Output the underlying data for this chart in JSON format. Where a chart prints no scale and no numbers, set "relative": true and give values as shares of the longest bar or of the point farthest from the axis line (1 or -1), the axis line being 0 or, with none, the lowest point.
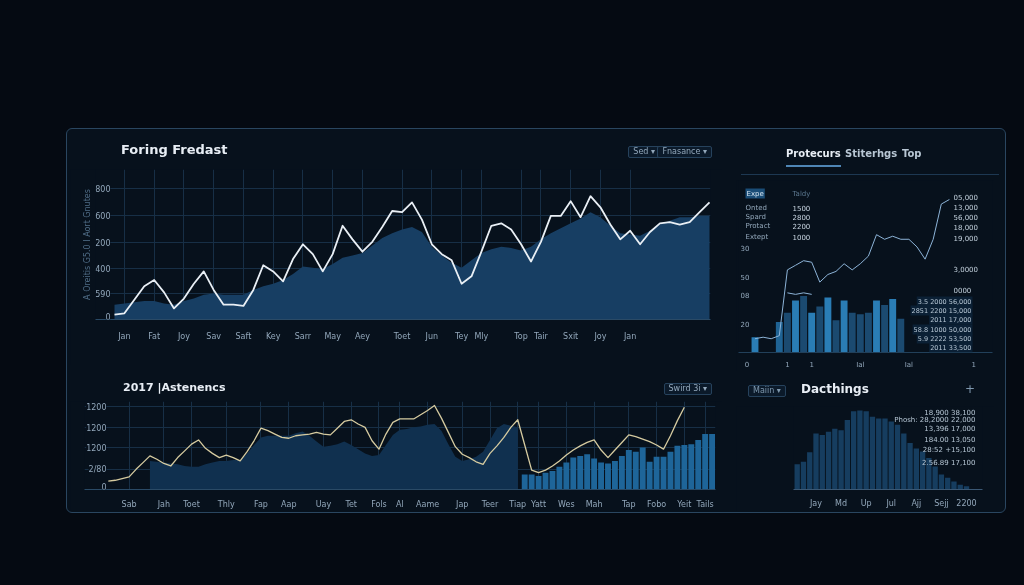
{
  "chart_data": [
    {
      "type": "area",
      "relative": true,
      "title": "Foring Fredast",
      "ylabel": "A Oreitis G5.0 I Aort Gnutes",
      "annotations": [
        "Sed ▾",
        "Fnasance ▾",
        "0",
        "590",
        "400",
        "200",
        "600",
        "800"
      ],
      "categories": [
        null,
        "Jan",
        null,
        null,
        "Fat",
        null,
        null,
        "Joy",
        null,
        null,
        "Sav",
        null,
        null,
        "Saft",
        null,
        null,
        "Key",
        null,
        null,
        "Sarr",
        null,
        null,
        "May",
        null,
        null,
        "Aey",
        null,
        null,
        null,
        "Toet",
        null,
        null,
        "Jun",
        null,
        null,
        "Tey",
        null,
        "Mly",
        null,
        null,
        null,
        "Top",
        null,
        "Tair",
        null,
        null,
        "Sxit",
        null,
        null,
        "Joy",
        null,
        null,
        "Jan",
        null,
        null,
        null,
        null,
        null,
        null,
        null,
        null
      ],
      "grid": true,
      "series": [
        {
          "color": "#173e63",
          "values": [
            0.12,
            0.13,
            0.14,
            0.15,
            0.15,
            0.13,
            0.12,
            0.15,
            0.17,
            0.2,
            0.21,
            0.2,
            0.2,
            0.2,
            0.24,
            0.27,
            0.29,
            0.32,
            0.37,
            0.43,
            0.42,
            0.41,
            0.45,
            0.5,
            0.52,
            0.54,
            0.6,
            0.66,
            0.7,
            0.73,
            0.75,
            0.71,
            0.59,
            0.52,
            0.46,
            0.42,
            0.48,
            0.54,
            0.57,
            0.59,
            0.58,
            0.56,
            0.59,
            0.65,
            0.7,
            0.74,
            0.78,
            0.82,
            0.87,
            0.83,
            0.76,
            0.7,
            0.69,
            0.68,
            0.72,
            0.77,
            0.8,
            0.83,
            0.83,
            0.84,
            0.84
          ]
        },
        {
          "type": "line",
          "color": "#e9eff5",
          "values": [
            0.04,
            0.05,
            0.16,
            0.27,
            0.32,
            0.22,
            0.09,
            0.17,
            0.29,
            0.39,
            0.24,
            0.12,
            0.12,
            0.11,
            0.24,
            0.44,
            0.39,
            0.31,
            0.49,
            0.61,
            0.53,
            0.39,
            0.53,
            0.76,
            0.65,
            0.55,
            0.63,
            0.75,
            0.88,
            0.87,
            0.95,
            0.81,
            0.61,
            0.53,
            0.48,
            0.29,
            0.35,
            0.55,
            0.76,
            0.78,
            0.73,
            0.61,
            0.47,
            0.63,
            0.84,
            0.84,
            0.96,
            0.83,
            1.0,
            0.91,
            0.77,
            0.65,
            0.72,
            0.61,
            0.71,
            0.78,
            0.79,
            0.77,
            0.79,
            0.87,
            0.95
          ]
        }
      ]
    },
    {
      "type": "line",
      "relative": true,
      "annotations": [
        "Protecurs",
        "Stiterhgs",
        "Top",
        "Expe",
        "Taldy",
        "Onted",
        "1500",
        "Spard",
        "2800",
        "Protact",
        "2200",
        "Extept",
        "1000",
        "05,000",
        "13,000",
        "56,000",
        "18,000",
        "19,000",
        "3,0000",
        "0000",
        "3.5 2000 56,000",
        "2851 2200 15,000",
        "2011 17,000",
        "58.8 1000 50,000",
        "5.9 2222 53,500",
        "2011 33,500",
        "30",
        "50",
        "08",
        "20"
      ],
      "categories": [
        "0",
        null,
        null,
        null,
        null,
        "1",
        null,
        null,
        "1",
        null,
        null,
        null,
        null,
        null,
        "Ial",
        null,
        null,
        null,
        null,
        null,
        "Ial",
        null,
        null,
        null,
        null,
        null,
        null,
        null,
        "1"
      ],
      "series": [
        {
          "type": "bar",
          "colors": [
            null,
            "#2a7db5",
            null,
            null,
            "#1f6394",
            "#1b4a70",
            "#2a7db5",
            "#1b4a70",
            "#2a7db5",
            "#1b4a70",
            "#2a7db5",
            "#1b4a70",
            "#2a7db5",
            "#1b4a70",
            "#1b4a70",
            "#1b4a70",
            "#2a7db5",
            "#1b4a70",
            "#2a7db5",
            "#1b4a70",
            null,
            null,
            null,
            null,
            null,
            null,
            null,
            null,
            null
          ],
          "values": [
            null,
            0.1,
            null,
            null,
            0.2,
            0.26,
            0.34,
            0.37,
            0.26,
            0.3,
            0.36,
            0.21,
            0.34,
            0.26,
            0.25,
            0.26,
            0.34,
            0.31,
            0.35,
            0.22,
            null,
            null,
            null,
            null,
            null,
            null,
            null,
            null,
            null
          ]
        },
        {
          "color": "#8db4d8",
          "values": [
            null,
            0.09,
            0.1,
            0.09,
            0.11,
            0.54,
            0.57,
            0.6,
            0.59,
            0.46,
            0.51,
            0.53,
            0.58,
            0.54,
            0.58,
            0.63,
            0.77,
            0.74,
            0.76,
            0.74,
            0.74,
            0.69,
            0.61,
            0.74,
            0.97,
            1.0,
            null,
            null,
            null
          ]
        },
        {
          "color": "#8db4d8",
          "values": [
            null,
            null,
            null,
            null,
            null,
            0.39,
            0.38,
            0.39,
            0.38,
            null,
            null,
            null,
            null,
            null,
            null,
            null,
            null,
            null,
            null,
            null,
            null,
            null,
            null,
            null,
            null,
            null,
            null,
            null,
            null
          ]
        }
      ]
    },
    {
      "type": "line",
      "relative": true,
      "title": "2017 |Astenencs",
      "annotations": [
        "Swird 3i ▾",
        "0",
        "2/80",
        "1200",
        "1200",
        "1200"
      ],
      "categories": [
        null,
        null,
        null,
        "Sab",
        null,
        null,
        null,
        null,
        "Jah",
        null,
        null,
        null,
        "Toet",
        null,
        null,
        null,
        null,
        "Thly",
        null,
        null,
        null,
        null,
        "Fap",
        null,
        null,
        null,
        "Aap",
        null,
        null,
        null,
        null,
        "Uay",
        null,
        null,
        null,
        "Tet",
        null,
        null,
        null,
        "Fols",
        null,
        null,
        "Al",
        null,
        null,
        null,
        "Aame",
        null,
        null,
        null,
        null,
        "Jap",
        null,
        null,
        null,
        "Teer",
        null,
        null,
        null,
        "Tiap",
        null,
        null,
        "Yatt",
        null,
        null,
        null,
        "Wes",
        null,
        null,
        null,
        "Mah",
        null,
        null,
        null,
        null,
        "Tap",
        null,
        null,
        null,
        "Fobo",
        null,
        null,
        null,
        "Yeit",
        null,
        null,
        "Tails",
        null
      ],
      "grid": true,
      "series": [
        {
          "color": "#d6cba0",
          "values": [
            0.1,
            0.11,
            0.13,
            0.15,
            0.24,
            0.32,
            0.4,
            0.36,
            0.31,
            0.28,
            0.38,
            0.46,
            0.54,
            0.59,
            0.49,
            0.43,
            0.38,
            0.41,
            0.38,
            0.34,
            0.45,
            0.58,
            0.73,
            0.7,
            0.66,
            0.62,
            0.61,
            0.64,
            0.65,
            0.66,
            0.68,
            0.66,
            0.65,
            0.73,
            0.81,
            0.83,
            0.78,
            0.74,
            0.58,
            0.48,
            0.66,
            0.8,
            0.84,
            0.84,
            0.84,
            0.89,
            0.94,
            1.0,
            0.85,
            0.68,
            0.51,
            0.42,
            0.38,
            0.33,
            0.3,
            0.43,
            0.52,
            0.62,
            0.74,
            0.83,
            0.53,
            0.23,
            0.2,
            0.23,
            0.28,
            0.34,
            0.41,
            0.47,
            0.52,
            0.56,
            0.59,
            0.47,
            0.38,
            0.47,
            0.56,
            0.65,
            0.63,
            0.6,
            0.57,
            0.53,
            0.48,
            0.64,
            0.82,
            0.98,
            null,
            null,
            null,
            null
          ]
        },
        {
          "type": "area",
          "color": "#10304f",
          "values": [
            null,
            null,
            null,
            null,
            null,
            null,
            0.34,
            0.33,
            0.32,
            0.31,
            0.3,
            0.28,
            0.27,
            0.27,
            0.3,
            0.32,
            0.34,
            0.34,
            0.35,
            0.35,
            0.43,
            0.53,
            0.62,
            0.64,
            0.64,
            0.64,
            0.64,
            0.67,
            0.69,
            0.64,
            0.57,
            0.51,
            0.52,
            0.54,
            0.57,
            0.53,
            0.48,
            0.43,
            0.4,
            0.41,
            0.53,
            0.65,
            0.71,
            0.72,
            0.74,
            0.75,
            0.77,
            0.78,
            0.7,
            0.54,
            0.39,
            0.34,
            0.36,
            0.39,
            0.45,
            0.59,
            0.73,
            0.78,
            0.76,
            0.74,
            null,
            null,
            null,
            null,
            null,
            null,
            null,
            null,
            null,
            null,
            null,
            null,
            null,
            null,
            null,
            null,
            null,
            null,
            null,
            null,
            null,
            null,
            null,
            null,
            null,
            null,
            null,
            null
          ]
        },
        {
          "type": "bar",
          "color": "#1e6599",
          "values": [
            null,
            null,
            null,
            null,
            null,
            null,
            null,
            null,
            null,
            null,
            null,
            null,
            null,
            null,
            null,
            null,
            null,
            null,
            null,
            null,
            null,
            null,
            null,
            null,
            null,
            null,
            null,
            null,
            null,
            null,
            null,
            null,
            null,
            null,
            null,
            null,
            null,
            null,
            null,
            null,
            null,
            null,
            null,
            null,
            null,
            null,
            null,
            null,
            null,
            null,
            null,
            null,
            null,
            null,
            null,
            null,
            null,
            null,
            null,
            null,
            0.18,
            0.18,
            0.16,
            0.2,
            0.22,
            0.27,
            0.32,
            0.38,
            0.4,
            0.42,
            0.37,
            0.32,
            0.31,
            0.34,
            0.4,
            0.47,
            0.45,
            0.5,
            0.33,
            0.39,
            0.39,
            0.45,
            0.52,
            0.53,
            0.54,
            0.59,
            0.66,
            0.66
          ]
        }
      ]
    },
    {
      "type": "bar",
      "relative": true,
      "title": "Dacthings",
      "annotations": [
        "Maiin ▾",
        "+",
        "18,900 38,100",
        "Phosh: 28,2000 22,000",
        "13,396 17,000",
        "184.00 13,050",
        "28:52 +15,100",
        "2.56.89 17,100"
      ],
      "categories": [
        null,
        null,
        null,
        "Jay",
        null,
        null,
        null,
        "Md",
        null,
        null,
        null,
        "Up",
        null,
        null,
        null,
        "Jul",
        null,
        null,
        null,
        "Ajj",
        null,
        null,
        null,
        "Sejj",
        null,
        null,
        null,
        "2200"
      ],
      "series": [
        {
          "color": "#163d5f",
          "values": [
            0.32,
            0.35,
            0.47,
            0.71,
            0.69,
            0.73,
            0.77,
            0.75,
            0.88,
            0.99,
            1.0,
            0.99,
            0.92,
            0.9,
            0.9,
            0.86,
            0.82,
            0.71,
            0.59,
            0.52,
            0.48,
            0.4,
            0.29,
            0.19,
            0.15,
            0.1,
            0.06,
            0.04
          ]
        }
      ]
    }
  ]
}
